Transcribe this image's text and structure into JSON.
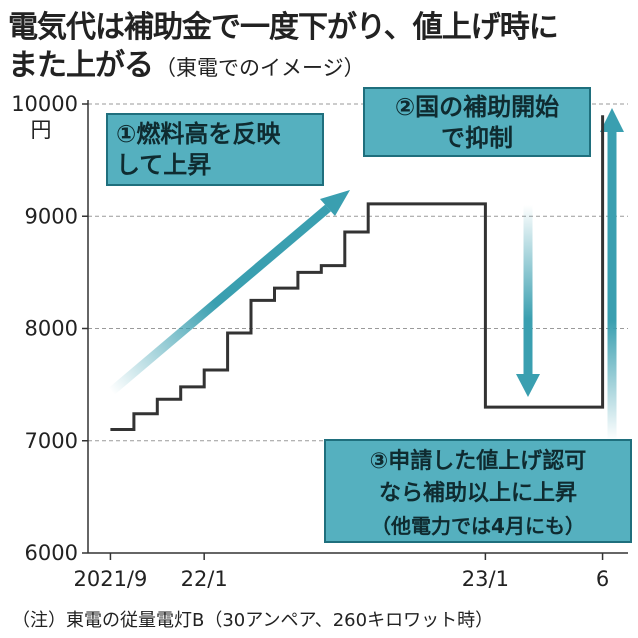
{
  "header": {
    "title_line1": "電気代は補助金で一度下がり、値上げ時に",
    "title_line2_main": "また上がる",
    "title_line2_sub": "（東電でのイメージ）"
  },
  "chart_data": {
    "type": "line",
    "title": "電気代は補助金で一度下がり、値上げ時にまた上がる（東電でのイメージ）",
    "ylabel": "円",
    "ylim": [
      6000,
      10000
    ],
    "yticks": [
      6000,
      7000,
      8000,
      9000,
      10000
    ],
    "ytick_labels": [
      "6000",
      "7000",
      "8000",
      "9000",
      "10000"
    ],
    "grid": true,
    "x_start": "2021-08",
    "x_end": "2023-07",
    "xticks": [
      {
        "date": "2021-09",
        "label": "2021/9"
      },
      {
        "date": "2022-01",
        "label": "22/1"
      },
      {
        "date": "2023-01",
        "label": "23/1"
      },
      {
        "date": "2023-06",
        "label": "6"
      }
    ],
    "series": [
      {
        "name": "",
        "color": "#333333",
        "points": [
          [
            "2021-09",
            7100
          ],
          [
            "2021-10",
            7100
          ],
          [
            "2021-10",
            7240
          ],
          [
            "2021-11",
            7240
          ],
          [
            "2021-11",
            7370
          ],
          [
            "2021-12",
            7370
          ],
          [
            "2021-12",
            7480
          ],
          [
            "2022-01",
            7480
          ],
          [
            "2022-01",
            7630
          ],
          [
            "2022-02",
            7630
          ],
          [
            "2022-02",
            7960
          ],
          [
            "2022-03",
            7960
          ],
          [
            "2022-03",
            8250
          ],
          [
            "2022-04",
            8250
          ],
          [
            "2022-04",
            8360
          ],
          [
            "2022-05",
            8360
          ],
          [
            "2022-05",
            8500
          ],
          [
            "2022-06",
            8500
          ],
          [
            "2022-06",
            8560
          ],
          [
            "2022-07",
            8560
          ],
          [
            "2022-07",
            8860
          ],
          [
            "2022-08",
            8860
          ],
          [
            "2022-08",
            9110
          ],
          [
            "2023-01",
            9110
          ],
          [
            "2023-01",
            7300
          ],
          [
            "2023-06",
            7300
          ],
          [
            "2023-06",
            9900
          ]
        ]
      }
    ],
    "annotations": [
      {
        "id": "1",
        "lines": [
          "①燃料高を反映",
          "して上昇"
        ]
      },
      {
        "id": "2",
        "lines": [
          "②国の補助開始",
          "で抑制"
        ]
      },
      {
        "id": "3",
        "lines": [
          "③申請した値上げ認可",
          "なら補助以上に上昇",
          "（他電力では4月にも）"
        ]
      }
    ],
    "colors": {
      "accent": "#3a9fb0",
      "line": "#333333",
      "grid": "#9a9a9a",
      "callout_fill": "#55b0bf"
    }
  },
  "footnote": "（注）東電の従量電灯B（30アンペア、260キロワット時）"
}
